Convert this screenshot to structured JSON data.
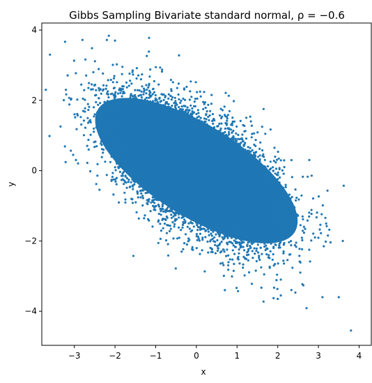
{
  "chart_data": {
    "type": "scatter",
    "title": "Gibbs Sampling Bivariate standard normal, ρ = −0.6",
    "xlabel": "x",
    "ylabel": "y",
    "xlim": [
      -3.8,
      4.3
    ],
    "ylim": [
      -4.97,
      4.2
    ],
    "xticks": [
      -3,
      -2,
      -1,
      0,
      1,
      2,
      3,
      4
    ],
    "yticks": [
      -4,
      -2,
      0,
      2,
      4
    ],
    "xtick_labels": [
      "−3",
      "−2",
      "−1",
      "0",
      "1",
      "2",
      "3",
      "4"
    ],
    "ytick_labels": [
      "−4",
      "−2",
      "0",
      "2",
      "4"
    ],
    "grid": false,
    "color": "#1f77b4",
    "series": [
      {
        "distribution": "bivariate standard normal",
        "mean": [
          0,
          0
        ],
        "std": [
          1,
          1
        ],
        "correlation": -0.6,
        "notable_points": [
          {
            "x": -3.6,
            "y": 3.3
          },
          {
            "x": -2.8,
            "y": 3.72
          },
          {
            "x": -2.2,
            "y": 3.72
          },
          {
            "x": -2.0,
            "y": 3.7
          },
          {
            "x": -3.7,
            "y": 2.3
          },
          {
            "x": 3.1,
            "y": -3.6
          },
          {
            "x": 3.5,
            "y": -3.6
          },
          {
            "x": 3.6,
            "y": -2.0
          },
          {
            "x": 3.8,
            "y": -4.55
          },
          {
            "x": 2.0,
            "y": -3.65
          },
          {
            "x": 0.7,
            "y": -3.4
          }
        ]
      }
    ]
  }
}
